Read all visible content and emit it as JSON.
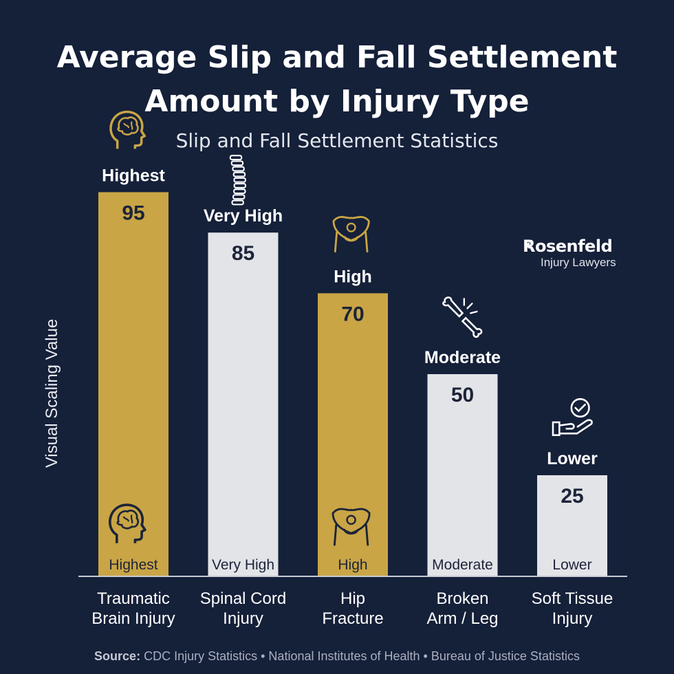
{
  "title_line1": "Average Slip and Fall Settlement",
  "title_line2": "Amount by Injury Type",
  "subtitle": "Slip and Fall Settlement Statistics",
  "logo": {
    "name": "Rosenfeld",
    "sub": "Injury Lawyers"
  },
  "source": {
    "label": "Source:",
    "text": "CDC Injury Statistics • National Institutes of Health • Bureau of Justice Statistics"
  },
  "colors": {
    "background": "#152039",
    "gold": "#c9a545",
    "light": "#e3e4e8",
    "value_text": "#1c2438",
    "axis": "#c8ccd4"
  },
  "chart_data": {
    "type": "bar",
    "ylabel": "Visual Scaling Value",
    "ylim": [
      0,
      100
    ],
    "grid": false,
    "categories": [
      [
        "Traumatic",
        "Brain Injury"
      ],
      [
        "Spinal Cord",
        "Injury"
      ],
      [
        "Hip",
        "Fracture"
      ],
      [
        "Broken",
        "Arm / Leg"
      ],
      [
        "Soft Tissue",
        "Injury"
      ]
    ],
    "values": [
      95,
      85,
      70,
      50,
      25
    ],
    "tiers": [
      "Highest",
      "Very High",
      "High",
      "Moderate",
      "Lower"
    ],
    "bar_colors": [
      "gold",
      "light",
      "gold",
      "light",
      "light"
    ],
    "icons": [
      "brain-icon",
      "spine-icon",
      "pelvis-icon",
      "broken-bone-icon",
      "hand-check-icon"
    ],
    "inner_icons": [
      "brain-icon",
      null,
      "pelvis-icon",
      null,
      null
    ]
  }
}
